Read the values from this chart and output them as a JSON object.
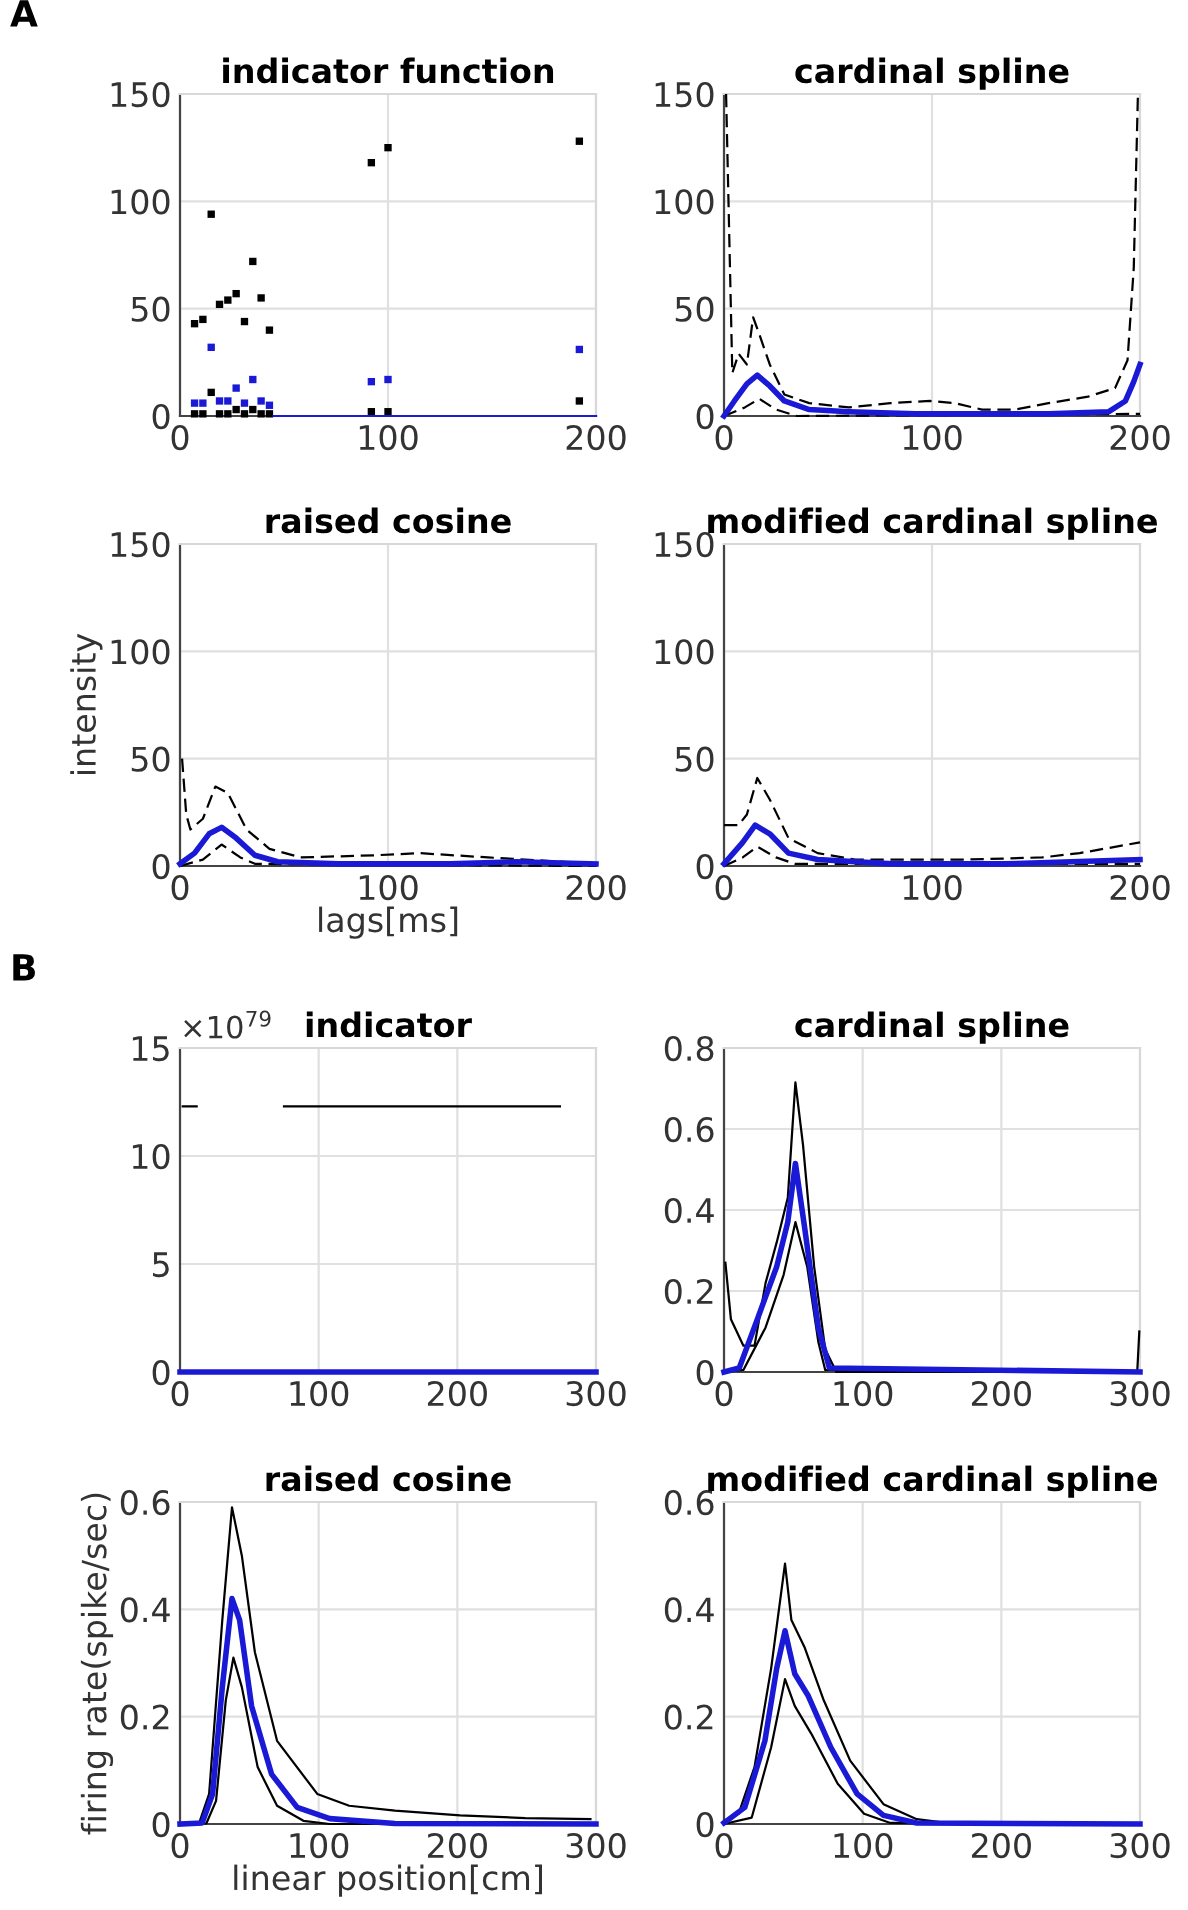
{
  "chart_data": [
    {
      "type": "scatter",
      "title": "indicator function",
      "annotations": [
        "A"
      ],
      "xlim": [
        0,
        200
      ],
      "ylim": [
        0,
        150
      ],
      "xticks": [
        0,
        100,
        200
      ],
      "yticks": [
        0,
        50,
        100,
        150
      ],
      "grid": true,
      "x": [
        7,
        11,
        15,
        19,
        23,
        27,
        31,
        35,
        39,
        43,
        92,
        100,
        192
      ],
      "series": [
        {
          "type": "scatter",
          "marker": "square",
          "color": "#000000",
          "values": [
            43,
            45,
            94,
            52,
            54,
            57,
            44,
            72,
            55,
            40,
            118,
            125,
            128
          ]
        },
        {
          "type": "scatter",
          "marker": "square",
          "color": "#1a1ad6",
          "values": [
            6,
            6,
            32,
            7,
            7,
            13,
            6,
            17,
            7,
            5,
            16,
            17,
            31
          ]
        },
        {
          "type": "scatter",
          "marker": "square",
          "color": "#000000",
          "values": [
            1,
            1,
            11,
            1,
            1,
            3,
            1,
            3,
            1,
            1,
            2,
            2,
            7
          ]
        },
        {
          "type": "line",
          "color": "#1a1ad6",
          "line_style": "solid",
          "x": [
            45,
            200
          ],
          "values": [
            0,
            0
          ]
        }
      ]
    },
    {
      "type": "line",
      "title": "cardinal spline",
      "xlim": [
        0,
        200
      ],
      "ylim": [
        0,
        150
      ],
      "xticks": [
        0,
        100,
        200
      ],
      "yticks": [
        0,
        50,
        100,
        150
      ],
      "grid": true,
      "series": [
        {
          "color": "#1a1ad6",
          "line_style": "solid",
          "x": [
            0,
            5,
            11,
            16,
            22,
            29,
            41,
            60,
            92,
            124,
            156,
            185,
            193,
            197,
            200
          ],
          "values": [
            0,
            7,
            15,
            19,
            14,
            7,
            3,
            2,
            1,
            1,
            1,
            2,
            7,
            16,
            24
          ]
        },
        {
          "color": "#000000",
          "line_style": "dashed",
          "x": [
            1,
            4,
            7,
            11,
            14,
            17,
            22,
            29,
            41,
            60,
            80,
            99,
            111,
            124,
            140,
            156,
            175,
            188,
            194,
            197,
            199
          ],
          "values": [
            150,
            20,
            29,
            24,
            46,
            38,
            24,
            10,
            6,
            4,
            6,
            7,
            6,
            3,
            3,
            6,
            9,
            13,
            26,
            69,
            150
          ]
        },
        {
          "color": "#000000",
          "line_style": "dashed",
          "x": [
            0,
            10,
            17,
            25,
            35,
            200
          ],
          "values": [
            0,
            4,
            8,
            3,
            0,
            1
          ]
        }
      ]
    },
    {
      "type": "line",
      "title": "raised cosine",
      "xlabel": "lags[ms]",
      "ylabel": "intensity",
      "xlim": [
        0,
        200
      ],
      "ylim": [
        0,
        150
      ],
      "xticks": [
        0,
        100,
        200
      ],
      "yticks": [
        0,
        50,
        100,
        150
      ],
      "grid": true,
      "series": [
        {
          "color": "#1a1ad6",
          "line_style": "solid",
          "x": [
            0,
            7,
            14,
            20,
            27,
            36,
            47,
            76,
            130,
            162,
            200
          ],
          "values": [
            1,
            6,
            15,
            18,
            13,
            5,
            2,
            1,
            1,
            2,
            1
          ]
        },
        {
          "color": "#000000",
          "line_style": "dashed",
          "x": [
            1,
            3,
            5,
            11,
            17,
            23,
            32,
            43,
            58,
            94,
            115,
            148,
            166,
            200
          ],
          "values": [
            50,
            24,
            17,
            22,
            37,
            34,
            17,
            8,
            4,
            5,
            6,
            4,
            3,
            1
          ]
        },
        {
          "color": "#000000",
          "line_style": "dashed",
          "x": [
            0,
            11,
            20,
            29,
            36,
            200
          ],
          "values": [
            0,
            3,
            10,
            4,
            1,
            0
          ]
        }
      ]
    },
    {
      "type": "line",
      "title": "modified cardinal spline",
      "xlim": [
        0,
        200
      ],
      "ylim": [
        0,
        150
      ],
      "xticks": [
        0,
        100,
        200
      ],
      "yticks": [
        0,
        50,
        100,
        150
      ],
      "grid": true,
      "series": [
        {
          "color": "#1a1ad6",
          "line_style": "solid",
          "x": [
            0,
            9,
            15,
            22,
            31,
            45,
            81,
            135,
            200
          ],
          "values": [
            1,
            11,
            19,
            15,
            6,
            3,
            1,
            1,
            3
          ]
        },
        {
          "color": "#000000",
          "line_style": "dashed",
          "x": [
            0,
            7,
            11,
            16,
            22,
            31,
            45,
            63,
            117,
            153,
            171,
            200
          ],
          "values": [
            19,
            19,
            24,
            41,
            31,
            13,
            6,
            3,
            3,
            4,
            6,
            11
          ]
        },
        {
          "color": "#000000",
          "line_style": "dashed",
          "x": [
            0,
            9,
            16,
            25,
            34,
            200
          ],
          "values": [
            0,
            4,
            9,
            4,
            1,
            1
          ]
        }
      ]
    },
    {
      "type": "line",
      "title": "indicator",
      "annotations": [
        "B",
        "×10$^{79}$"
      ],
      "xlim": [
        0,
        300
      ],
      "ylim": [
        0,
        15
      ],
      "xticks": [
        0,
        100,
        200,
        300
      ],
      "yticks": [
        0,
        5,
        10,
        15
      ],
      "grid": true,
      "series": [
        {
          "color": "#1a1ad6",
          "line_style": "solid",
          "x": [
            0,
            300
          ],
          "values": [
            0,
            0
          ]
        },
        {
          "color": "#000000",
          "line_style": "solid",
          "x": [
            2,
            12,
            43,
            75,
            274
          ],
          "values": [
            12.3,
            12.3,
            null,
            12.3,
            12.3
          ]
        }
      ]
    },
    {
      "type": "line",
      "title": "cardinal spline",
      "xlim": [
        0,
        300
      ],
      "ylim": [
        0,
        0.8
      ],
      "xticks": [
        0,
        100,
        200,
        300
      ],
      "yticks": [
        0,
        0.2,
        0.4,
        0.6,
        0.8
      ],
      "grid": true,
      "series": [
        {
          "color": "#1a1ad6",
          "line_style": "solid",
          "x": [
            0,
            11,
            24,
            38,
            46,
            51.5,
            58,
            68,
            76,
            300
          ],
          "values": [
            0,
            0.01,
            0.13,
            0.26,
            0.37,
            0.515,
            0.36,
            0.11,
            0.01,
            0
          ]
        },
        {
          "color": "#000000",
          "line_style": "solid",
          "x": [
            1,
            5,
            14,
            22,
            30,
            38,
            46,
            51.5,
            57,
            65,
            73,
            81,
            298,
            299.5
          ],
          "values": [
            0.27,
            0.13,
            0.065,
            0.065,
            0.22,
            0.32,
            0.43,
            0.715,
            0.56,
            0.26,
            0.056,
            0,
            0,
            0.1
          ]
        },
        {
          "color": "#000000",
          "line_style": "solid",
          "x": [
            0,
            14,
            30,
            43,
            51.5,
            60,
            68,
            73,
            300
          ],
          "values": [
            0,
            0.005,
            0.11,
            0.24,
            0.37,
            0.26,
            0.075,
            0.005,
            0
          ]
        }
      ]
    },
    {
      "type": "line",
      "title": "raised cosine",
      "xlabel": "linear position[cm]",
      "ylabel": "firing rate(spike/sec)",
      "xlim": [
        0,
        300
      ],
      "ylim": [
        0,
        0.6
      ],
      "xticks": [
        0,
        100,
        200,
        300
      ],
      "yticks": [
        0,
        0.2,
        0.4,
        0.6
      ],
      "grid": true,
      "series": [
        {
          "color": "#1a1ad6",
          "line_style": "solid",
          "x": [
            0,
            16,
            23.5,
            30.5,
            37.5,
            43,
            51.6,
            66,
            84.5,
            108,
            155,
            300
          ],
          "values": [
            0,
            0.002,
            0.056,
            0.255,
            0.42,
            0.38,
            0.22,
            0.093,
            0.031,
            0.01,
            0.001,
            0
          ]
        },
        {
          "color": "#000000",
          "line_style": "solid",
          "x": [
            0,
            14,
            21,
            30.5,
            37.5,
            44.6,
            54,
            70,
            99,
            122,
            155,
            202,
            249,
            296
          ],
          "values": [
            0,
            0.003,
            0.056,
            0.38,
            0.59,
            0.5,
            0.32,
            0.155,
            0.056,
            0.034,
            0.025,
            0.016,
            0.011,
            0.009
          ]
        },
        {
          "color": "#000000",
          "line_style": "solid",
          "x": [
            0,
            19,
            26,
            33,
            38.5,
            44.6,
            56,
            70,
            89,
            108,
            300
          ],
          "values": [
            0,
            0.001,
            0.043,
            0.23,
            0.31,
            0.255,
            0.106,
            0.034,
            0.006,
            0,
            0
          ]
        }
      ]
    },
    {
      "type": "line",
      "title": "modified cardinal spline",
      "xlim": [
        0,
        300
      ],
      "ylim": [
        0,
        0.6
      ],
      "xticks": [
        0,
        100,
        200,
        300
      ],
      "yticks": [
        0,
        0.2,
        0.4,
        0.6
      ],
      "grid": true,
      "series": [
        {
          "color": "#1a1ad6",
          "line_style": "solid",
          "x": [
            0,
            15,
            29.5,
            38,
            44,
            51,
            60.5,
            77,
            96,
            115,
            139,
            300
          ],
          "values": [
            0.002,
            0.031,
            0.155,
            0.29,
            0.36,
            0.28,
            0.24,
            0.143,
            0.056,
            0.016,
            0.002,
            0
          ]
        },
        {
          "color": "#000000",
          "line_style": "solid",
          "x": [
            0,
            10.5,
            22,
            34,
            44,
            48.6,
            58,
            72,
            91,
            115,
            139,
            163,
            300
          ],
          "values": [
            0.006,
            0.019,
            0.106,
            0.29,
            0.485,
            0.38,
            0.33,
            0.23,
            0.118,
            0.037,
            0.009,
            0.001,
            0
          ]
        },
        {
          "color": "#000000",
          "line_style": "solid",
          "x": [
            0,
            20,
            34,
            44,
            51,
            63,
            82,
            101,
            120,
            300
          ],
          "values": [
            0,
            0.012,
            0.143,
            0.27,
            0.22,
            0.168,
            0.075,
            0.019,
            0.002,
            0
          ]
        }
      ]
    }
  ]
}
